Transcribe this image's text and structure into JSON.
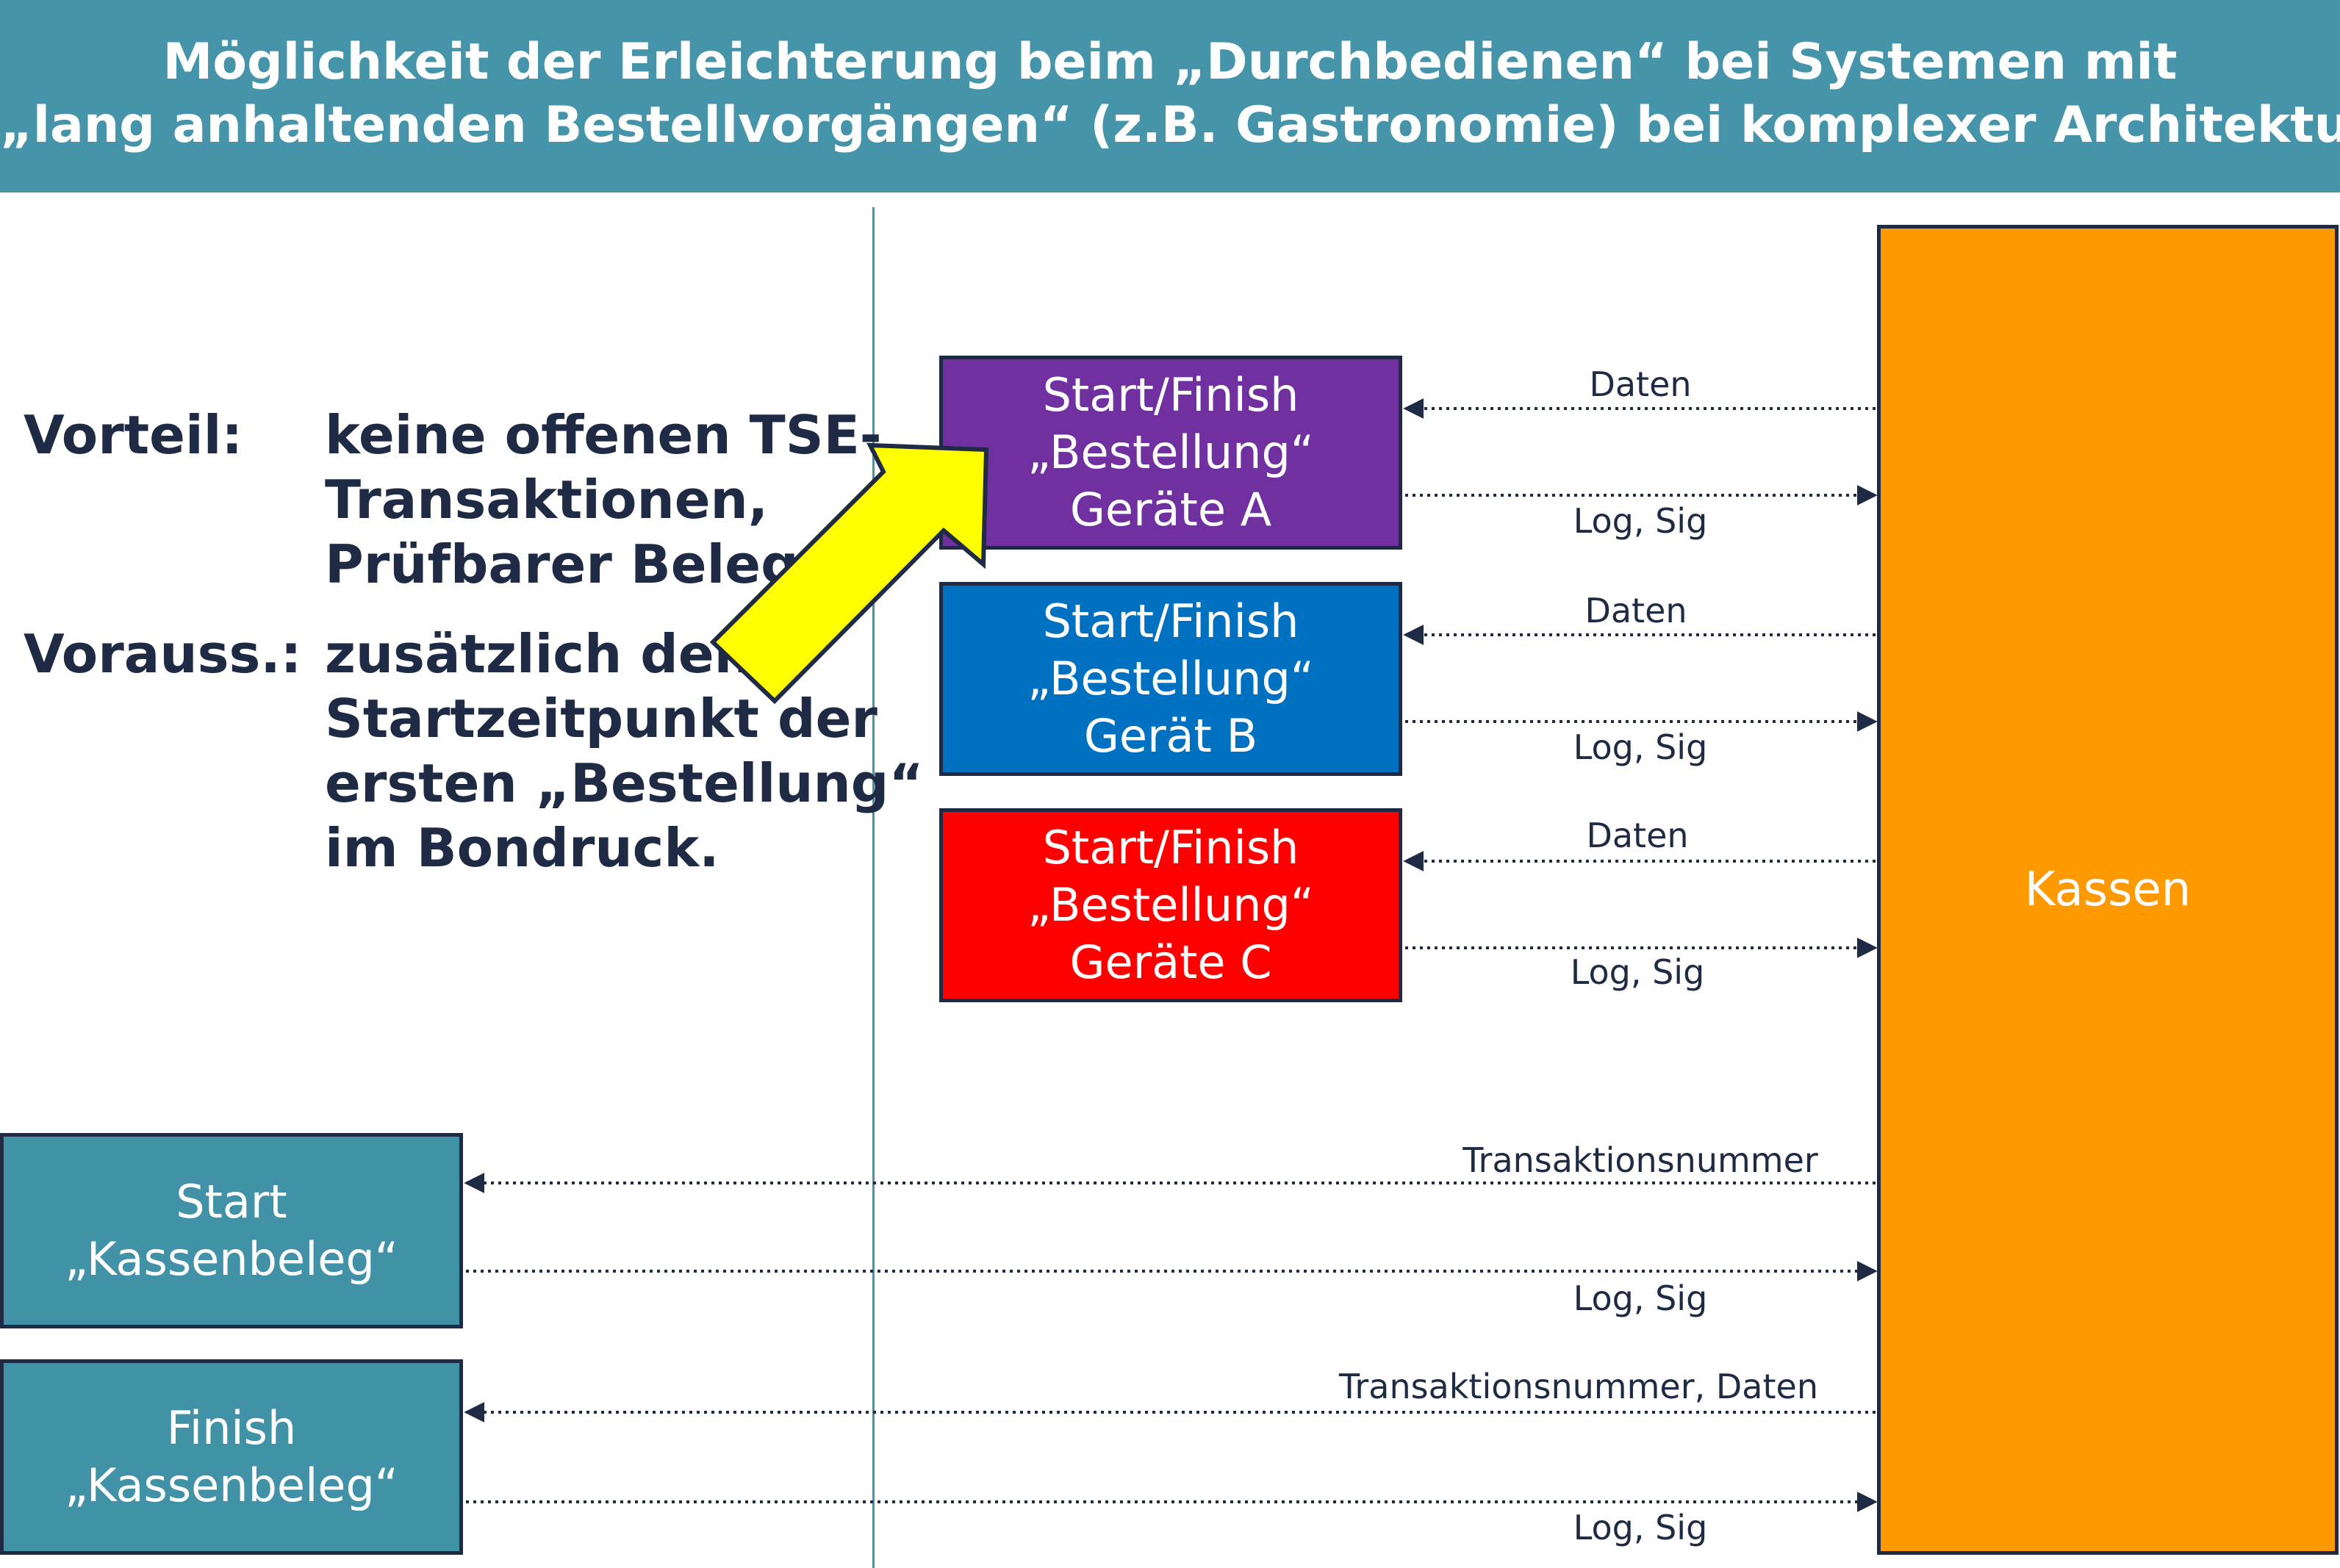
{
  "header": {
    "line1": "Möglichkeit der Erleichterung beim „Durchbedienen“ bei Systemen mit",
    "line2": "„lang anhaltenden Bestellvorgängen“ (z.B. Gastronomie) bei komplexer Architektur"
  },
  "notes": {
    "vorteil_label": "Vorteil:",
    "vorteil_lines": [
      "keine offenen TSE-",
      "Transaktionen,",
      "Prüfbarer Beleg"
    ],
    "vorauss_label": "Vorauss.:",
    "vorauss_lines": [
      "zusätzlich den",
      "Startzeitpunkt der",
      "ersten „Bestellung“",
      "im Bondruck."
    ]
  },
  "devices": [
    {
      "lines": [
        "Start/Finish",
        "„Bestellung“",
        "Geräte A"
      ],
      "color": "#7030a0",
      "in_label": "Daten",
      "out_label": "Log, Sig"
    },
    {
      "lines": [
        "Start/Finish",
        "„Bestellung“",
        "Gerät B"
      ],
      "color": "#0070c0",
      "in_label": "Daten",
      "out_label": "Log, Sig"
    },
    {
      "lines": [
        "Start/Finish",
        "„Bestellung“",
        "Geräte C"
      ],
      "color": "#ff0000",
      "in_label": "Daten",
      "out_label": "Log, Sig"
    }
  ],
  "kassen": {
    "label": "Kassen",
    "color": "#ff9900"
  },
  "kassenbeleg": [
    {
      "lines": [
        "Start",
        "„Kassenbeleg“"
      ],
      "in_label": "Transaktionsnummer",
      "out_label": "Log, Sig"
    },
    {
      "lines": [
        "Finish",
        "„Kassenbeleg“"
      ],
      "in_label": "Transaktionsnummer, Daten",
      "out_label": "Log, Sig"
    }
  ],
  "colors": {
    "header": "#4694a9",
    "arrow_fill": "#ffff00",
    "dark": "#1f2b44"
  }
}
